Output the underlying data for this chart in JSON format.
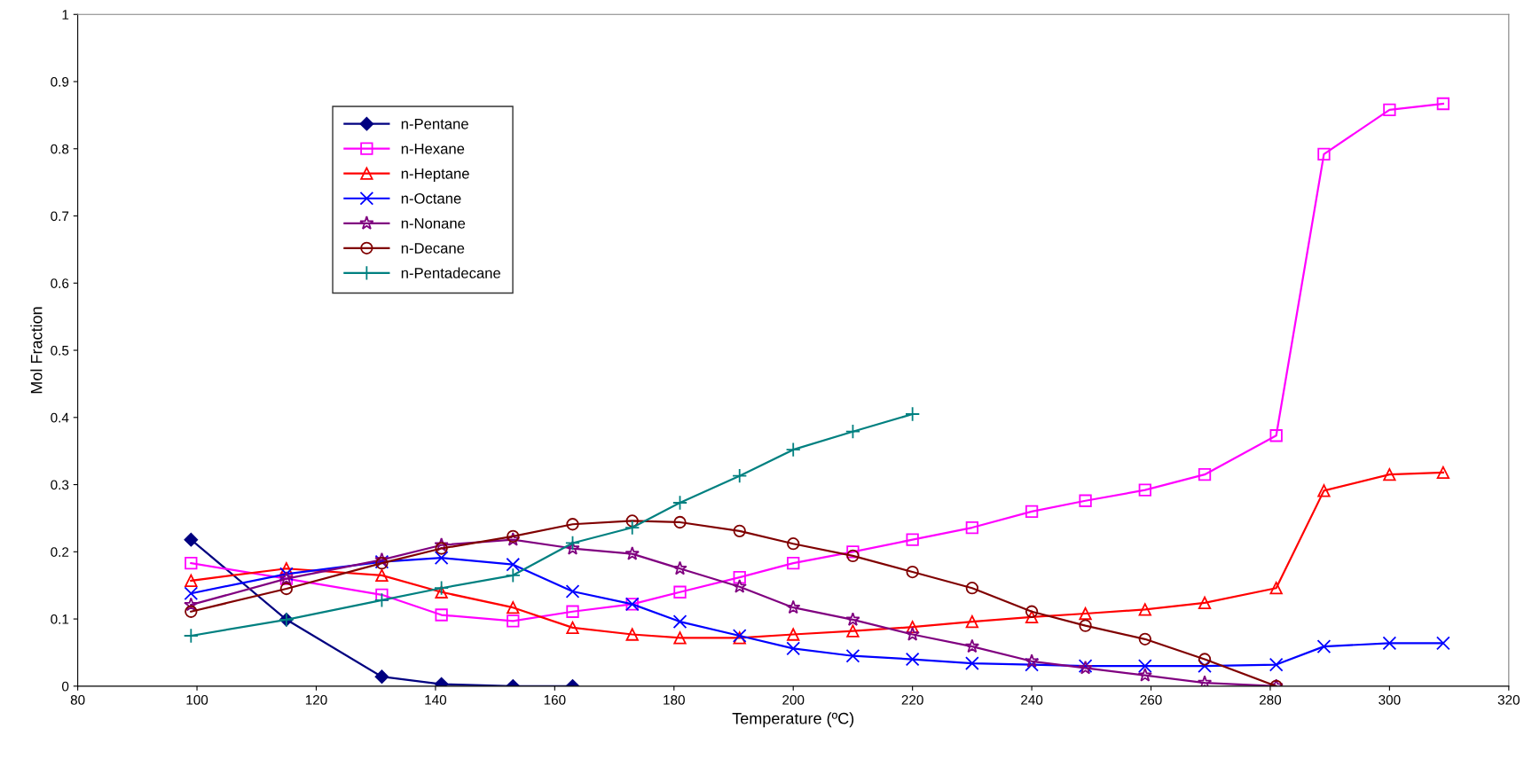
{
  "chart_data": {
    "type": "line",
    "xlabel": "Temperature (ºC)",
    "ylabel": "Mol Fraction",
    "xlim": [
      80,
      320
    ],
    "xticks": [
      80,
      100,
      120,
      140,
      160,
      180,
      200,
      220,
      240,
      260,
      280,
      300,
      320
    ],
    "ylim": [
      0,
      1
    ],
    "yticks": [
      0,
      0.1,
      0.2,
      0.3,
      0.4,
      0.5,
      0.6,
      0.7,
      0.8,
      0.9,
      1
    ],
    "grid": false,
    "legend": "top left",
    "line_style": "solid",
    "series": [
      {
        "name": "n-Pentane",
        "color": "#000080",
        "marker": "diamond",
        "x": [
          99,
          115,
          131,
          141,
          153,
          163
        ],
        "values": [
          0.218,
          0.099,
          0.014,
          0.003,
          0.0,
          0.0
        ]
      },
      {
        "name": "n-Hexane",
        "color": "#ff00ff",
        "marker": "square",
        "x": [
          99,
          115,
          131,
          141,
          153,
          163,
          173,
          181,
          191,
          200,
          210,
          220,
          230,
          240,
          249,
          259,
          269,
          281,
          289,
          300,
          309
        ],
        "values": [
          0.183,
          0.16,
          0.136,
          0.106,
          0.097,
          0.111,
          0.122,
          0.14,
          0.162,
          0.183,
          0.2,
          0.218,
          0.236,
          0.26,
          0.276,
          0.292,
          0.315,
          0.373,
          0.792,
          0.858,
          0.867
        ]
      },
      {
        "name": "n-Heptane",
        "color": "#ff0000",
        "marker": "triangle",
        "x": [
          99,
          115,
          131,
          141,
          153,
          163,
          173,
          181,
          191,
          200,
          210,
          220,
          230,
          240,
          249,
          259,
          269,
          281,
          289,
          300,
          309
        ],
        "values": [
          0.157,
          0.175,
          0.165,
          0.14,
          0.117,
          0.087,
          0.077,
          0.072,
          0.072,
          0.077,
          0.082,
          0.088,
          0.096,
          0.103,
          0.108,
          0.114,
          0.124,
          0.146,
          0.291,
          0.315,
          0.318
        ]
      },
      {
        "name": "n-Octane",
        "color": "#0000ff",
        "marker": "cross",
        "x": [
          99,
          115,
          131,
          141,
          153,
          163,
          173,
          181,
          191,
          200,
          210,
          220,
          230,
          240,
          249,
          259,
          269,
          281,
          289,
          300,
          309
        ],
        "values": [
          0.138,
          0.167,
          0.185,
          0.191,
          0.181,
          0.141,
          0.122,
          0.096,
          0.075,
          0.056,
          0.045,
          0.04,
          0.034,
          0.032,
          0.03,
          0.03,
          0.03,
          0.032,
          0.059,
          0.064,
          0.064
        ]
      },
      {
        "name": "n-Nonane",
        "color": "#800080",
        "marker": "star",
        "x": [
          99,
          115,
          131,
          141,
          153,
          163,
          173,
          181,
          191,
          200,
          210,
          220,
          230,
          240,
          249,
          259,
          269,
          281
        ],
        "values": [
          0.121,
          0.16,
          0.188,
          0.21,
          0.218,
          0.205,
          0.197,
          0.175,
          0.148,
          0.117,
          0.099,
          0.077,
          0.059,
          0.037,
          0.027,
          0.016,
          0.005,
          0.0
        ]
      },
      {
        "name": "n-Decane",
        "color": "#800000",
        "marker": "circle",
        "x": [
          99,
          115,
          131,
          141,
          153,
          163,
          173,
          181,
          191,
          200,
          210,
          220,
          230,
          240,
          249,
          259,
          269,
          281
        ],
        "values": [
          0.111,
          0.145,
          0.183,
          0.205,
          0.223,
          0.241,
          0.246,
          0.244,
          0.231,
          0.212,
          0.194,
          0.17,
          0.146,
          0.111,
          0.09,
          0.07,
          0.04,
          0.0
        ]
      },
      {
        "name": "n-Pentadecane",
        "color": "#008080",
        "marker": "plus",
        "x": [
          99,
          115,
          131,
          141,
          153,
          163,
          173,
          181,
          191,
          200,
          210,
          220
        ],
        "values": [
          0.075,
          0.099,
          0.128,
          0.146,
          0.165,
          0.213,
          0.236,
          0.273,
          0.313,
          0.352,
          0.379,
          0.405
        ]
      }
    ]
  }
}
